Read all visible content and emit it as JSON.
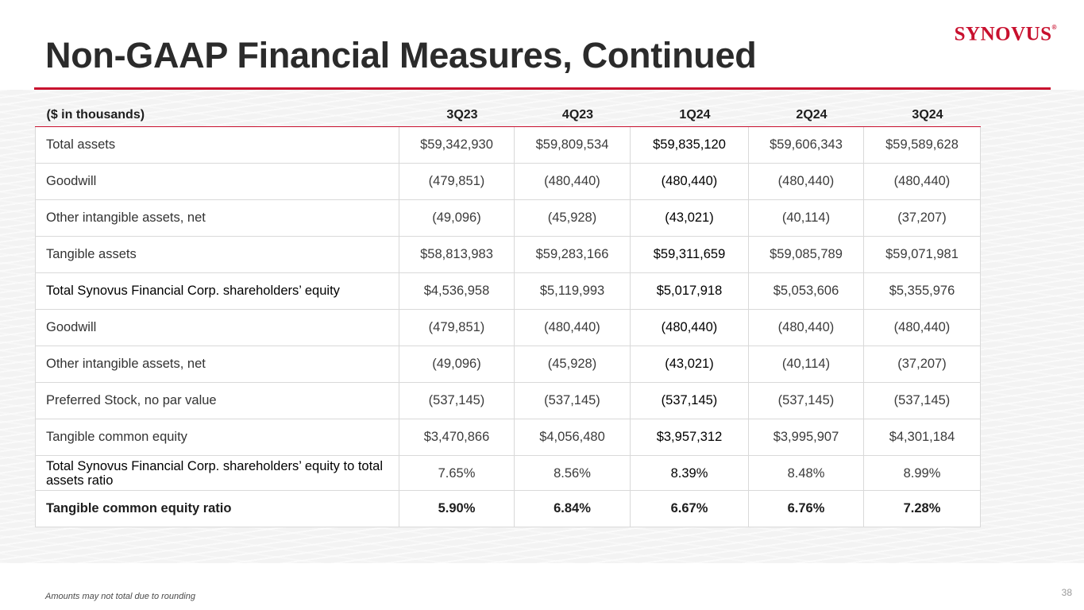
{
  "slide": {
    "title": "Non-GAAP Financial Measures, Continued",
    "logo": "SYNOVUS",
    "logo_mark": "®",
    "footnote": "Amounts may not total due to rounding",
    "page_number": "38"
  },
  "colors": {
    "accent": "#c8102e",
    "band": "#f3f3f3",
    "title_text": "#2b2b2b"
  },
  "table": {
    "headers": [
      "($ in thousands)",
      "3Q23",
      "4Q23",
      "1Q24",
      "2Q24",
      "3Q24"
    ],
    "rows": [
      [
        "Total assets",
        "$59,342,930",
        "$59,809,534",
        "$59,835,120",
        "$59,606,343",
        "$59,589,628"
      ],
      [
        "Goodwill",
        "(479,851)",
        "(480,440)",
        "(480,440)",
        "(480,440)",
        "(480,440)"
      ],
      [
        "Other intangible assets, net",
        "(49,096)",
        "(45,928)",
        "(43,021)",
        "(40,114)",
        "(37,207)"
      ],
      [
        "Tangible assets",
        "$58,813,983",
        "$59,283,166",
        "$59,311,659",
        "$59,085,789",
        "$59,071,981"
      ],
      [
        "Total Synovus Financial Corp. shareholders’ equity",
        "$4,536,958",
        "$5,119,993",
        "$5,017,918",
        "$5,053,606",
        "$5,355,976"
      ],
      [
        "Goodwill",
        "(479,851)",
        "(480,440)",
        "(480,440)",
        "(480,440)",
        "(480,440)"
      ],
      [
        "Other intangible assets, net",
        "(49,096)",
        "(45,928)",
        "(43,021)",
        "(40,114)",
        "(37,207)"
      ],
      [
        "Preferred Stock, no par value",
        "(537,145)",
        "(537,145)",
        "(537,145)",
        "(537,145)",
        "(537,145)"
      ],
      [
        "Tangible common equity",
        "$3,470,866",
        "$4,056,480",
        "$3,957,312",
        "$3,995,907",
        "$4,301,184"
      ],
      [
        "Total Synovus Financial Corp. shareholders’ equity to total assets ratio",
        "7.65%",
        "8.56%",
        "8.39%",
        "8.48%",
        "8.99%"
      ],
      [
        "Tangible common equity ratio",
        "5.90%",
        "6.84%",
        "6.67%",
        "6.76%",
        "7.28%"
      ]
    ]
  }
}
